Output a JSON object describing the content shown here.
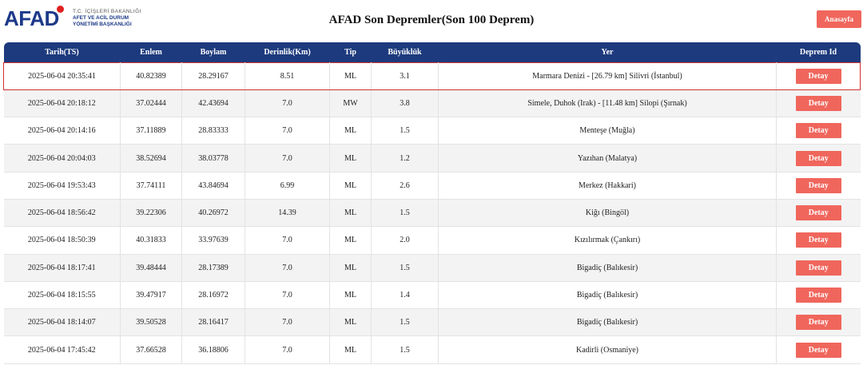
{
  "header": {
    "logo_text": "AFAD",
    "logo_sub_top": "T.C. İÇİŞLERİ BAKANLIĞI",
    "logo_sub_line1": "AFET VE ACİL DURUM",
    "logo_sub_line2": "YÖNETİMİ BAŞKANLIĞI",
    "title": "AFAD Son Depremler(Son 100 Deprem)",
    "home_label": "Anasayfa"
  },
  "table": {
    "columns": [
      "Tarih(TS)",
      "Enlem",
      "Boylam",
      "Derinlik(Km)",
      "Tip",
      "Büyüklük",
      "Yer",
      "Deprem Id"
    ],
    "detail_label": "Detay",
    "rows": [
      [
        "2025-06-04 20:35:41",
        "40.82389",
        "28.29167",
        "8.51",
        "ML",
        "3.1",
        "Marmara Denizi - [26.79 km] Silivri (İstanbul)"
      ],
      [
        "2025-06-04 20:18:12",
        "37.02444",
        "42.43694",
        "7.0",
        "MW",
        "3.8",
        "Simele, Duhok (Irak) - [11.48 km] Silopi (Şırnak)"
      ],
      [
        "2025-06-04 20:14:16",
        "37.11889",
        "28.83333",
        "7.0",
        "ML",
        "1.5",
        "Menteşe (Muğla)"
      ],
      [
        "2025-06-04 20:04:03",
        "38.52694",
        "38.03778",
        "7.0",
        "ML",
        "1.2",
        "Yazıhan (Malatya)"
      ],
      [
        "2025-06-04 19:53:43",
        "37.74111",
        "43.84694",
        "6.99",
        "ML",
        "2.6",
        "Merkez (Hakkari)"
      ],
      [
        "2025-06-04 18:56:42",
        "39.22306",
        "40.26972",
        "14.39",
        "ML",
        "1.5",
        "Kiğı (Bingöl)"
      ],
      [
        "2025-06-04 18:50:39",
        "40.31833",
        "33.97639",
        "7.0",
        "ML",
        "2.0",
        "Kızılırmak (Çankırı)"
      ],
      [
        "2025-06-04 18:17:41",
        "39.48444",
        "28.17389",
        "7.0",
        "ML",
        "1.5",
        "Bigadiç (Balıkesir)"
      ],
      [
        "2025-06-04 18:15:55",
        "39.47917",
        "28.16972",
        "7.0",
        "ML",
        "1.4",
        "Bigadiç (Balıkesir)"
      ],
      [
        "2025-06-04 18:14:07",
        "39.50528",
        "28.16417",
        "7.0",
        "ML",
        "1.5",
        "Bigadiç (Balıkesir)"
      ],
      [
        "2025-06-04 17:45:42",
        "37.66528",
        "36.18806",
        "7.0",
        "ML",
        "1.5",
        "Kadirli (Osmaniye)"
      ]
    ],
    "selected_row": 0
  },
  "colors": {
    "header_bg": "#1d3a7e",
    "button_bg": "#f0665c",
    "selection_border": "#d03030"
  }
}
